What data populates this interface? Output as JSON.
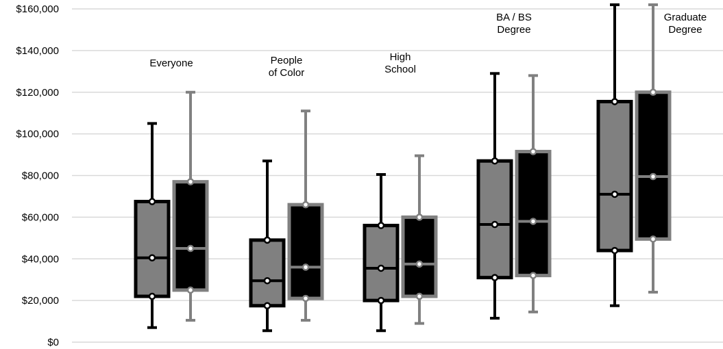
{
  "chart_data": {
    "type": "box",
    "title": "",
    "xlabel": "",
    "ylabel": "",
    "ylim": [
      0,
      160000
    ],
    "y_ticks": [
      "$0",
      "$20,000",
      "$40,000",
      "$60,000",
      "$80,000",
      "$100,000",
      "$120,000",
      "$140,000",
      "$160,000"
    ],
    "grid": true,
    "legend": "none",
    "series_styles": [
      {
        "box_fill": "#808080",
        "line_color": "#000000"
      },
      {
        "box_fill": "#000000",
        "line_color": "#808080"
      }
    ],
    "categories": [
      {
        "label_lines": [
          "Everyone"
        ],
        "boxes": [
          {
            "min": 7000,
            "q1": 22000,
            "median": 40500,
            "q3": 67500,
            "max": 105000
          },
          {
            "min": 10500,
            "q1": 25000,
            "median": 45000,
            "q3": 77000,
            "max": 120000
          }
        ]
      },
      {
        "label_lines": [
          "People",
          "of Color"
        ],
        "boxes": [
          {
            "min": 5500,
            "q1": 17500,
            "median": 29500,
            "q3": 49000,
            "max": 87000
          },
          {
            "min": 10500,
            "q1": 21000,
            "median": 36000,
            "q3": 66000,
            "max": 111000
          }
        ]
      },
      {
        "label_lines": [
          "High",
          "School"
        ],
        "boxes": [
          {
            "min": 5500,
            "q1": 20000,
            "median": 35500,
            "q3": 56000,
            "max": 80500
          },
          {
            "min": 9000,
            "q1": 22000,
            "median": 37500,
            "q3": 60000,
            "max": 89500
          }
        ]
      },
      {
        "label_lines": [
          "BA / BS",
          "Degree"
        ],
        "boxes": [
          {
            "min": 11500,
            "q1": 31000,
            "median": 56500,
            "q3": 87000,
            "max": 129000
          },
          {
            "min": 14500,
            "q1": 32000,
            "median": 58000,
            "q3": 91500,
            "max": 128000
          }
        ]
      },
      {
        "label_lines": [
          "Graduate",
          "Degree"
        ],
        "boxes": [
          {
            "min": 17500,
            "q1": 44000,
            "median": 71000,
            "q3": 115500,
            "max": 162000
          },
          {
            "min": 24000,
            "q1": 49500,
            "median": 79500,
            "q3": 120000,
            "max": 162000
          }
        ]
      }
    ]
  }
}
